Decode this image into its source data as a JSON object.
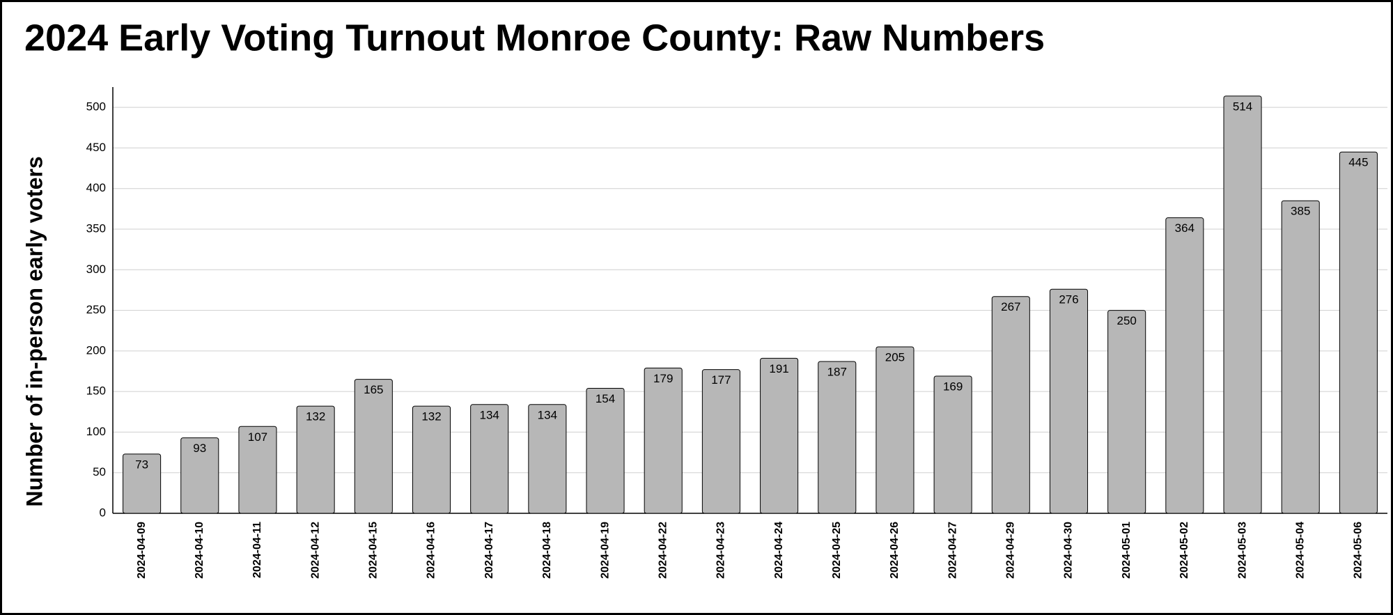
{
  "chart_data": {
    "type": "bar",
    "title": "2024 Early Voting Turnout Monroe County: Raw Numbers",
    "y_label": "Number of in-person early voters",
    "categories": [
      "2024-04-09",
      "2024-04-10",
      "2024-04-11",
      "2024-04-12",
      "2024-04-15",
      "2024-04-16",
      "2024-04-17",
      "2024-04-18",
      "2024-04-19",
      "2024-04-22",
      "2024-04-23",
      "2024-04-24",
      "2024-04-25",
      "2024-04-26",
      "2024-04-27",
      "2024-04-29",
      "2024-04-30",
      "2024-05-01",
      "2024-05-02",
      "2024-05-03",
      "2024-05-04",
      "2024-05-06"
    ],
    "values": [
      73,
      93,
      107,
      132,
      165,
      132,
      134,
      134,
      154,
      179,
      177,
      191,
      187,
      205,
      169,
      267,
      276,
      250,
      364,
      514,
      385,
      445
    ],
    "color": "#b7b7b7",
    "ylim": [
      0,
      525
    ],
    "yticks": [
      0,
      50,
      100,
      150,
      200,
      250,
      300,
      350,
      400,
      450,
      500
    ],
    "grid": true
  }
}
